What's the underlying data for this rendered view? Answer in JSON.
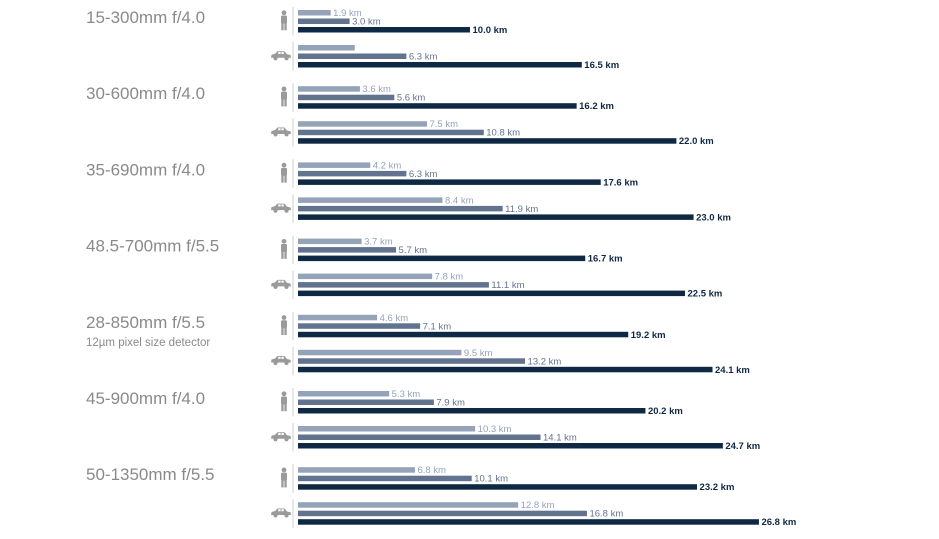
{
  "chart_data": {
    "type": "bar",
    "orientation": "horizontal",
    "unit": "km",
    "max_value": 26.8,
    "colors": {
      "light": "#94a3b8",
      "medium": "#627390",
      "dark": "#0f2844",
      "icon": "#9a9a9a",
      "title": "#8a8a8a"
    },
    "icons": {
      "person": "person-icon",
      "vehicle": "car-icon"
    },
    "groups": [
      {
        "lens": "15-300mm f/4.0",
        "subtitle": "",
        "person": {
          "values": [
            1.9,
            3.0,
            10.0
          ],
          "labels": [
            "1.9 km",
            "3.0 km",
            "10.0 km"
          ]
        },
        "vehicle": {
          "values": [
            3.3,
            6.3,
            16.5
          ],
          "labels": [
            "",
            "6.3 km",
            "16.5 km"
          ]
        }
      },
      {
        "lens": "30-600mm f/4.0",
        "subtitle": "",
        "person": {
          "values": [
            3.6,
            5.6,
            16.2
          ],
          "labels": [
            "3.6 km",
            "5.6 km",
            "16.2 km"
          ]
        },
        "vehicle": {
          "values": [
            7.5,
            10.8,
            22.0
          ],
          "labels": [
            "7.5 km",
            "10.8 km",
            "22.0 km"
          ]
        }
      },
      {
        "lens": "35-690mm f/4.0",
        "subtitle": "",
        "person": {
          "values": [
            4.2,
            6.3,
            17.6
          ],
          "labels": [
            "4.2 km",
            "6.3 km",
            "17.6 km"
          ]
        },
        "vehicle": {
          "values": [
            8.4,
            11.9,
            23.0
          ],
          "labels": [
            "8.4 km",
            "11.9 km",
            "23.0 km"
          ]
        }
      },
      {
        "lens": "48.5-700mm f/5.5",
        "subtitle": "",
        "person": {
          "values": [
            3.7,
            5.7,
            16.7
          ],
          "labels": [
            "3.7 km",
            "5.7 km",
            "16.7 km"
          ]
        },
        "vehicle": {
          "values": [
            7.8,
            11.1,
            22.5
          ],
          "labels": [
            "7.8 km",
            "11.1 km",
            "22.5 km"
          ]
        }
      },
      {
        "lens": "28-850mm f/5.5",
        "subtitle": "12µm pixel size detector",
        "person": {
          "values": [
            4.6,
            7.1,
            19.2
          ],
          "labels": [
            "4.6 km",
            "7.1 km",
            "19.2 km"
          ]
        },
        "vehicle": {
          "values": [
            9.5,
            13.2,
            24.1
          ],
          "labels": [
            "9.5 km",
            "13.2 km",
            "24.1 km"
          ]
        }
      },
      {
        "lens": "45-900mm f/4.0",
        "subtitle": "",
        "person": {
          "values": [
            5.3,
            7.9,
            20.2
          ],
          "labels": [
            "5.3 km",
            "7.9 km",
            "20.2 km"
          ]
        },
        "vehicle": {
          "values": [
            10.3,
            14.1,
            24.7
          ],
          "labels": [
            "10.3 km",
            "14.1 km",
            "24.7 km"
          ]
        }
      },
      {
        "lens": "50-1350mm f/5.5",
        "subtitle": "",
        "person": {
          "values": [
            6.8,
            10.1,
            23.2
          ],
          "labels": [
            "6.8 km",
            "10.1 km",
            "23.2 km"
          ]
        },
        "vehicle": {
          "values": [
            12.8,
            16.8,
            26.8
          ],
          "labels": [
            "12.8 km",
            "16.8 km",
            "26.8 km"
          ]
        }
      }
    ]
  }
}
